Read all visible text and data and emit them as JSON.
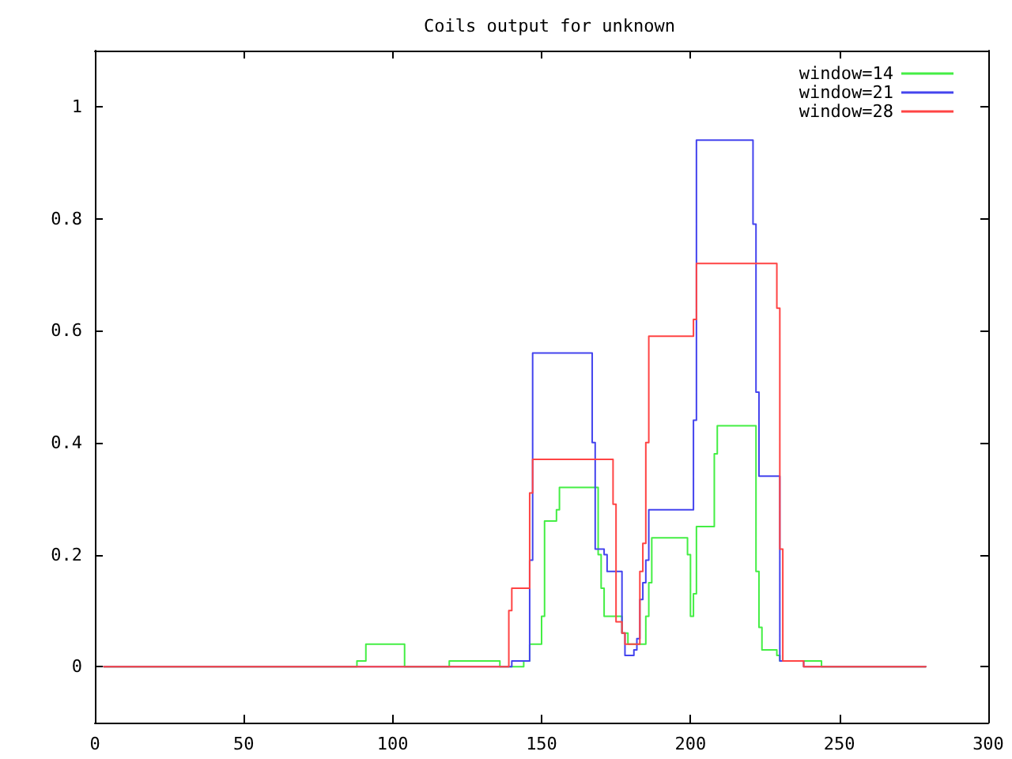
{
  "chart_data": {
    "type": "step",
    "title": "Coils output for unknown",
    "series": [
      {
        "name": "window=14",
        "color": "#44ee44",
        "x": [
          3,
          88,
          91,
          104,
          119,
          136,
          144,
          146,
          150,
          151,
          155,
          156,
          169,
          170,
          171,
          177,
          179,
          185,
          186,
          187,
          199,
          200,
          201,
          202,
          208,
          209,
          222,
          223,
          224,
          229,
          230,
          244,
          279
        ],
        "values": [
          0,
          0.01,
          0.04,
          0,
          0.01,
          0,
          0.01,
          0.04,
          0.09,
          0.26,
          0.28,
          0.32,
          0.2,
          0.14,
          0.09,
          0.06,
          0.04,
          0.09,
          0.15,
          0.23,
          0.2,
          0.09,
          0.13,
          0.25,
          0.38,
          0.43,
          0.17,
          0.07,
          0.03,
          0.02,
          0.01,
          0,
          0
        ]
      },
      {
        "name": "window=21",
        "color": "#4444ee",
        "x": [
          3,
          140,
          146,
          147,
          167,
          168,
          171,
          172,
          177,
          178,
          181,
          182,
          183,
          184,
          185,
          186,
          201,
          202,
          221,
          222,
          223,
          230,
          238,
          279
        ],
        "values": [
          0,
          0.01,
          0.19,
          0.56,
          0.4,
          0.21,
          0.2,
          0.17,
          0.06,
          0.02,
          0.03,
          0.05,
          0.12,
          0.15,
          0.19,
          0.28,
          0.44,
          0.94,
          0.79,
          0.49,
          0.34,
          0.01,
          0,
          0
        ]
      },
      {
        "name": "window=28",
        "color": "#ff4444",
        "x": [
          3,
          139,
          140,
          146,
          147,
          174,
          175,
          177,
          178,
          183,
          184,
          185,
          186,
          201,
          202,
          229,
          230,
          231,
          238,
          279
        ],
        "values": [
          0,
          0.1,
          0.14,
          0.31,
          0.37,
          0.29,
          0.08,
          0.06,
          0.04,
          0.17,
          0.22,
          0.4,
          0.59,
          0.62,
          0.72,
          0.64,
          0.21,
          0.01,
          0,
          0
        ]
      }
    ],
    "xlim": [
      0,
      300
    ],
    "xticks": [
      0,
      50,
      100,
      150,
      200,
      250,
      300
    ],
    "ylim": [
      -0.1,
      1.1
    ],
    "yticks": [
      0,
      0.2,
      0.4,
      0.6,
      0.8,
      1
    ],
    "legend": "top right",
    "marker": "none"
  }
}
